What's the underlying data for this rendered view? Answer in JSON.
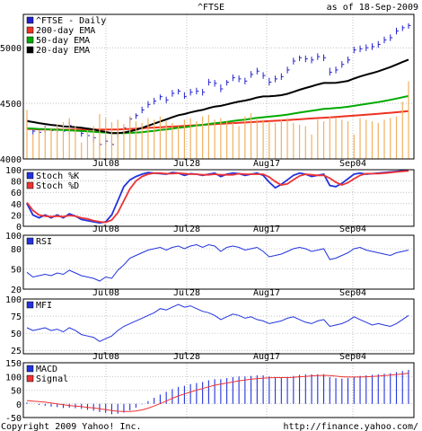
{
  "header": {
    "symbol": "^FTSE",
    "asof": "as of 18-Sep-2009"
  },
  "footer": {
    "copyright": "Copyright 2009 Yahoo! Inc.",
    "url": "http://finance.yahoo.com/"
  },
  "colors": {
    "price": "#2222cc",
    "ema200": "#ee3322",
    "ema50": "#00aa00",
    "ema20": "#000000",
    "volume": "#f0b060",
    "stochK": "#2233dd",
    "stochD": "#ee3333",
    "rsi": "#2233dd",
    "mfi": "#2233dd",
    "macd": "#2233dd",
    "signal": "#ee3333",
    "grid": "#999999"
  },
  "chart_data": [
    {
      "type": "line",
      "name": "price",
      "x": [
        "2009-06-22",
        "2009-06-23",
        "2009-06-24",
        "2009-06-25",
        "2009-06-26",
        "2009-06-29",
        "2009-06-30",
        "2009-07-01",
        "2009-07-02",
        "2009-07-03",
        "2009-07-06",
        "2009-07-07",
        "2009-07-08",
        "2009-07-09",
        "2009-07-10",
        "2009-07-13",
        "2009-07-14",
        "2009-07-15",
        "2009-07-16",
        "2009-07-17",
        "2009-07-20",
        "2009-07-21",
        "2009-07-22",
        "2009-07-23",
        "2009-07-24",
        "2009-07-27",
        "2009-07-28",
        "2009-07-29",
        "2009-07-30",
        "2009-07-31",
        "2009-08-03",
        "2009-08-04",
        "2009-08-05",
        "2009-08-06",
        "2009-08-07",
        "2009-08-10",
        "2009-08-11",
        "2009-08-12",
        "2009-08-13",
        "2009-08-14",
        "2009-08-17",
        "2009-08-18",
        "2009-08-19",
        "2009-08-20",
        "2009-08-21",
        "2009-08-24",
        "2009-08-25",
        "2009-08-26",
        "2009-08-27",
        "2009-08-28",
        "2009-09-01",
        "2009-09-02",
        "2009-09-03",
        "2009-09-04",
        "2009-09-07",
        "2009-09-08",
        "2009-09-09",
        "2009-09-10",
        "2009-09-11",
        "2009-09-14",
        "2009-09-15",
        "2009-09-16",
        "2009-09-17",
        "2009-09-18"
      ],
      "xticks": [
        "Jul08",
        "Jul28",
        "Aug17",
        "Sep04"
      ],
      "ylim": [
        4000,
        5300
      ],
      "yticks": [
        4000,
        4500,
        5000
      ],
      "legend": [
        "^FTSE - Daily",
        "200-day EMA",
        "50-day EMA",
        "20-day EMA"
      ],
      "series": [
        {
          "name": "^FTSE - Daily",
          "style": "ohlc",
          "values": [
            4345,
            4250,
            4240,
            4270,
            4255,
            4270,
            4250,
            4300,
            4250,
            4230,
            4210,
            4190,
            4130,
            4160,
            4130,
            4230,
            4280,
            4360,
            4390,
            4440,
            4490,
            4520,
            4560,
            4530,
            4590,
            4610,
            4560,
            4600,
            4610,
            4600,
            4690,
            4680,
            4630,
            4690,
            4730,
            4720,
            4700,
            4760,
            4790,
            4750,
            4690,
            4720,
            4740,
            4800,
            4880,
            4910,
            4900,
            4890,
            4920,
            4910,
            4780,
            4800,
            4850,
            4890,
            4980,
            4990,
            5000,
            5010,
            5030,
            5070,
            5090,
            5150,
            5180,
            5200
          ],
          "highs": [
            4370,
            4280,
            4260,
            4300,
            4280,
            4290,
            4280,
            4340,
            4280,
            4260,
            4240,
            4210,
            4160,
            4180,
            4170,
            4260,
            4310,
            4380,
            4410,
            4470,
            4520,
            4550,
            4580,
            4560,
            4620,
            4630,
            4600,
            4630,
            4640,
            4630,
            4720,
            4710,
            4670,
            4710,
            4760,
            4750,
            4730,
            4790,
            4820,
            4780,
            4730,
            4750,
            4770,
            4830,
            4910,
            4930,
            4930,
            4920,
            4950,
            4940,
            4820,
            4830,
            4880,
            4920,
            5010,
            5020,
            5030,
            5040,
            5060,
            5100,
            5120,
            5180,
            5200,
            5220
          ],
          "lows": [
            4300,
            4220,
            4210,
            4230,
            4230,
            4240,
            4220,
            4270,
            4220,
            4200,
            4180,
            4150,
            4100,
            4130,
            4110,
            4190,
            4250,
            4330,
            4360,
            4410,
            4460,
            4490,
            4530,
            4500,
            4560,
            4580,
            4540,
            4570,
            4580,
            4570,
            4660,
            4650,
            4600,
            4660,
            4700,
            4690,
            4670,
            4730,
            4760,
            4720,
            4660,
            4690,
            4710,
            4770,
            4850,
            4880,
            4870,
            4860,
            4890,
            4880,
            4750,
            4770,
            4820,
            4860,
            4950,
            4960,
            4970,
            4980,
            5000,
            5040,
            5060,
            5120,
            5150,
            5170
          ]
        },
        {
          "name": "200-day EMA",
          "values": [
            4270,
            4268,
            4266,
            4265,
            4264,
            4264,
            4263,
            4264,
            4264,
            4264,
            4264,
            4264,
            4264,
            4264,
            4264,
            4265,
            4267,
            4270,
            4273,
            4276,
            4279,
            4282,
            4285,
            4288,
            4291,
            4294,
            4297,
            4300,
            4303,
            4306,
            4310,
            4313,
            4316,
            4319,
            4322,
            4325,
            4328,
            4331,
            4334,
            4337,
            4340,
            4343,
            4346,
            4349,
            4353,
            4356,
            4360,
            4364,
            4367,
            4371,
            4374,
            4378,
            4382,
            4386,
            4390,
            4394,
            4398,
            4402,
            4406,
            4411,
            4415,
            4420,
            4425,
            4430
          ]
        },
        {
          "name": "50-day EMA",
          "values": [
            4275,
            4273,
            4270,
            4268,
            4265,
            4262,
            4260,
            4257,
            4254,
            4251,
            4248,
            4245,
            4240,
            4237,
            4233,
            4232,
            4232,
            4234,
            4237,
            4241,
            4247,
            4253,
            4260,
            4266,
            4273,
            4280,
            4286,
            4293,
            4300,
            4306,
            4314,
            4321,
            4326,
            4333,
            4341,
            4348,
            4354,
            4361,
            4369,
            4375,
            4380,
            4386,
            4392,
            4399,
            4408,
            4417,
            4425,
            4433,
            4441,
            4450,
            4453,
            4458,
            4463,
            4469,
            4477,
            4486,
            4494,
            4502,
            4511,
            4521,
            4531,
            4543,
            4555,
            4566
          ]
        },
        {
          "name": "20-day EMA",
          "values": [
            4340,
            4332,
            4322,
            4314,
            4306,
            4300,
            4292,
            4290,
            4286,
            4280,
            4273,
            4266,
            4252,
            4243,
            4232,
            4232,
            4237,
            4249,
            4262,
            4279,
            4298,
            4317,
            4337,
            4355,
            4375,
            4393,
            4404,
            4418,
            4431,
            4441,
            4457,
            4471,
            4477,
            4490,
            4504,
            4516,
            4525,
            4537,
            4552,
            4562,
            4563,
            4567,
            4573,
            4585,
            4603,
            4622,
            4638,
            4653,
            4669,
            4683,
            4683,
            4685,
            4692,
            4702,
            4723,
            4741,
            4757,
            4772,
            4788,
            4807,
            4826,
            4849,
            4871,
            4893
          ]
        },
        {
          "name": "volume",
          "style": "bar",
          "values": [
            60,
            30,
            35,
            40,
            38,
            42,
            45,
            50,
            40,
            20,
            35,
            40,
            55,
            50,
            45,
            48,
            42,
            52,
            46,
            44,
            50,
            48,
            52,
            46,
            44,
            40,
            48,
            50,
            46,
            52,
            54,
            48,
            50,
            46,
            44,
            40,
            52,
            56,
            50,
            48,
            46,
            44,
            48,
            50,
            44,
            42,
            40,
            30,
            48,
            46,
            52,
            50,
            48,
            46,
            30,
            50,
            48,
            46,
            44,
            48,
            50,
            52,
            70,
            95
          ]
        }
      ]
    },
    {
      "type": "line",
      "name": "stochastic",
      "ylim": [
        0,
        100
      ],
      "yticks": [
        0,
        20,
        40,
        60,
        80,
        100
      ],
      "xticks": [
        "Jul08",
        "Jul28",
        "Aug17",
        "Sep04"
      ],
      "legend": [
        "Stoch %K",
        "Stoch %D"
      ],
      "series": [
        {
          "name": "Stoch %K",
          "values": [
            40,
            20,
            15,
            20,
            15,
            20,
            15,
            22,
            18,
            12,
            10,
            8,
            6,
            8,
            20,
            45,
            70,
            82,
            88,
            92,
            95,
            94,
            93,
            92,
            95,
            94,
            90,
            93,
            92,
            90,
            92,
            94,
            88,
            92,
            94,
            93,
            90,
            92,
            94,
            90,
            78,
            68,
            74,
            82,
            90,
            94,
            92,
            88,
            90,
            92,
            72,
            70,
            76,
            84,
            92,
            94,
            92,
            93,
            94,
            95,
            96,
            97,
            98,
            99
          ]
        },
        {
          "name": "Stoch %D",
          "values": [
            42,
            28,
            20,
            18,
            17,
            18,
            17,
            19,
            18,
            15,
            13,
            10,
            8,
            7,
            11,
            24,
            45,
            66,
            80,
            88,
            92,
            94,
            94,
            93,
            93,
            94,
            93,
            92,
            92,
            91,
            91,
            92,
            91,
            91,
            91,
            93,
            92,
            92,
            92,
            92,
            87,
            79,
            73,
            75,
            82,
            89,
            92,
            91,
            90,
            90,
            85,
            78,
            73,
            77,
            84,
            90,
            93,
            93,
            93,
            94,
            95,
            96,
            97,
            98
          ]
        }
      ]
    },
    {
      "type": "line",
      "name": "rsi",
      "ylim": [
        20,
        100
      ],
      "yticks": [
        20,
        50,
        80,
        100
      ],
      "xticks": [
        "Jul08",
        "Jul28",
        "Aug17",
        "Sep04"
      ],
      "legend": [
        "RSI"
      ],
      "series": [
        {
          "name": "RSI",
          "values": [
            45,
            38,
            40,
            42,
            40,
            44,
            42,
            48,
            44,
            40,
            38,
            36,
            32,
            38,
            36,
            48,
            56,
            66,
            70,
            74,
            78,
            80,
            82,
            78,
            82,
            84,
            80,
            84,
            86,
            82,
            86,
            84,
            76,
            82,
            84,
            82,
            78,
            80,
            82,
            76,
            68,
            70,
            72,
            76,
            80,
            82,
            80,
            76,
            78,
            80,
            64,
            66,
            70,
            74,
            80,
            82,
            78,
            76,
            74,
            72,
            70,
            74,
            76,
            78
          ]
        }
      ]
    },
    {
      "type": "line",
      "name": "mfi",
      "ylim": [
        20,
        100
      ],
      "yticks": [
        25,
        50,
        75,
        100
      ],
      "xticks": [
        "Jul08",
        "Jul28",
        "Aug17",
        "Sep04"
      ],
      "legend": [
        "MFI"
      ],
      "series": [
        {
          "name": "MFI",
          "values": [
            58,
            54,
            56,
            58,
            54,
            56,
            52,
            58,
            54,
            48,
            46,
            44,
            38,
            42,
            46,
            54,
            60,
            64,
            68,
            72,
            76,
            80,
            86,
            84,
            88,
            92,
            88,
            90,
            86,
            82,
            80,
            76,
            70,
            74,
            78,
            76,
            72,
            74,
            70,
            68,
            64,
            66,
            68,
            72,
            74,
            70,
            66,
            64,
            68,
            70,
            60,
            62,
            64,
            68,
            74,
            70,
            66,
            62,
            64,
            62,
            60,
            64,
            70,
            76
          ]
        }
      ]
    },
    {
      "type": "bar",
      "name": "macd",
      "ylim": [
        -50,
        150
      ],
      "yticks": [
        -50,
        0,
        50,
        100,
        150
      ],
      "xticks": [
        "Jul08",
        "Jul28",
        "Aug17",
        "Sep04"
      ],
      "legend": [
        "MACD",
        "Signal"
      ],
      "series": [
        {
          "name": "MACD",
          "style": "bar",
          "values": [
            5,
            0,
            -4,
            -7,
            -10,
            -12,
            -15,
            -14,
            -16,
            -18,
            -22,
            -25,
            -30,
            -33,
            -38,
            -36,
            -32,
            -24,
            -14,
            -2,
            10,
            22,
            34,
            44,
            54,
            62,
            66,
            72,
            76,
            80,
            86,
            90,
            90,
            94,
            98,
            100,
            100,
            102,
            104,
            104,
            100,
            98,
            96,
            98,
            102,
            106,
            108,
            108,
            108,
            108,
            98,
            94,
            92,
            94,
            98,
            102,
            104,
            106,
            108,
            110,
            112,
            116,
            120,
            124
          ]
        },
        {
          "name": "Signal",
          "values": [
            12,
            10,
            8,
            6,
            3,
            0,
            -3,
            -6,
            -8,
            -10,
            -13,
            -15,
            -18,
            -21,
            -24,
            -27,
            -28,
            -28,
            -26,
            -22,
            -16,
            -8,
            1,
            10,
            20,
            29,
            36,
            43,
            50,
            56,
            62,
            68,
            72,
            76,
            80,
            84,
            87,
            90,
            92,
            94,
            95,
            96,
            96,
            96,
            97,
            99,
            100,
            102,
            103,
            104,
            103,
            101,
            99,
            98,
            98,
            98,
            99,
            100,
            101,
            103,
            105,
            107,
            109,
            112
          ]
        }
      ]
    }
  ]
}
